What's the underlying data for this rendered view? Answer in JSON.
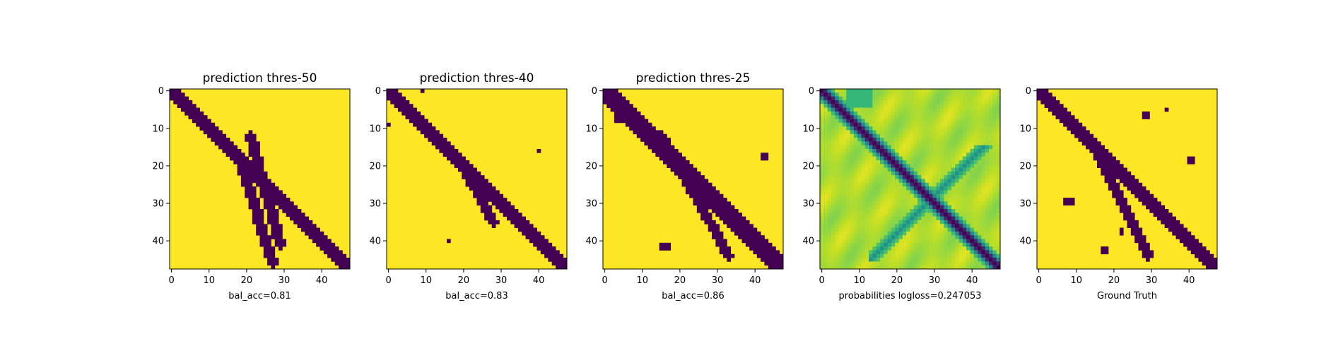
{
  "chart_data": [
    {
      "type": "heatmap",
      "title": "prediction thres-50",
      "xlabel": "bal_acc=0.81",
      "variant": "binary",
      "thickness": 2,
      "cross": [
        [
          21,
          46,
          19,
          27
        ],
        [
          12,
          41,
          21,
          29
        ]
      ],
      "extra_points": [],
      "blobs": [],
      "x_ticks": [
        0,
        10,
        20,
        30,
        40
      ],
      "y_ticks": [
        0,
        10,
        20,
        30,
        40
      ],
      "grid_size": 48
    },
    {
      "type": "heatmap",
      "title": "prediction thres-40",
      "xlabel": "bal_acc=0.83",
      "variant": "binary",
      "thickness": 2,
      "cross": [
        [
          17,
          35,
          18,
          28
        ]
      ],
      "extra_points": [
        [
          9,
          0
        ],
        [
          0,
          9
        ],
        [
          40,
          16
        ],
        [
          16,
          40
        ]
      ],
      "blobs": [],
      "x_ticks": [
        0,
        10,
        20,
        30,
        40
      ],
      "y_ticks": [
        0,
        10,
        20,
        30,
        40
      ],
      "grid_size": 48
    },
    {
      "type": "heatmap",
      "title": "prediction thres-25",
      "xlabel": "bal_acc=0.86",
      "variant": "binary",
      "thickness": 3,
      "cross": [
        [
          12,
          44,
          15,
          33
        ]
      ],
      "extra_points": [],
      "blobs": [
        [
          3,
          6,
          2,
          3
        ],
        [
          4,
          3,
          3,
          3
        ],
        [
          42,
          17,
          2,
          2
        ],
        [
          15,
          41,
          3,
          2
        ]
      ],
      "x_ticks": [
        0,
        10,
        20,
        30,
        40
      ],
      "y_ticks": [
        0,
        10,
        20,
        30,
        40
      ],
      "grid_size": 48
    },
    {
      "type": "heatmap",
      "title": "",
      "xlabel": "probabilities logloss=0.247053",
      "variant": "probability",
      "x_ticks": [
        0,
        10,
        20,
        30,
        40
      ],
      "y_ticks": [
        0,
        10,
        20,
        30,
        40
      ],
      "grid_size": 48
    },
    {
      "type": "heatmap",
      "title": "",
      "xlabel": "Ground Truth",
      "variant": "binary",
      "thickness": 2,
      "cross": [
        [
          17,
          44,
          16,
          29
        ]
      ],
      "extra_points": [],
      "blobs": [
        [
          28,
          6,
          2,
          2
        ],
        [
          34,
          5,
          1,
          1
        ],
        [
          7,
          29,
          3,
          2
        ],
        [
          40,
          18,
          2,
          2
        ],
        [
          17,
          42,
          2,
          2
        ],
        [
          22,
          37,
          1,
          2
        ]
      ],
      "x_ticks": [
        0,
        10,
        20,
        30,
        40
      ],
      "y_ticks": [
        0,
        10,
        20,
        30,
        40
      ],
      "grid_size": 48
    }
  ],
  "colors": {
    "yellow": "#fde725",
    "purple": "#440154",
    "light_green": "#c2df23",
    "green": "#86d549",
    "teal": "#2a788e",
    "mid_teal": "#22a884"
  }
}
